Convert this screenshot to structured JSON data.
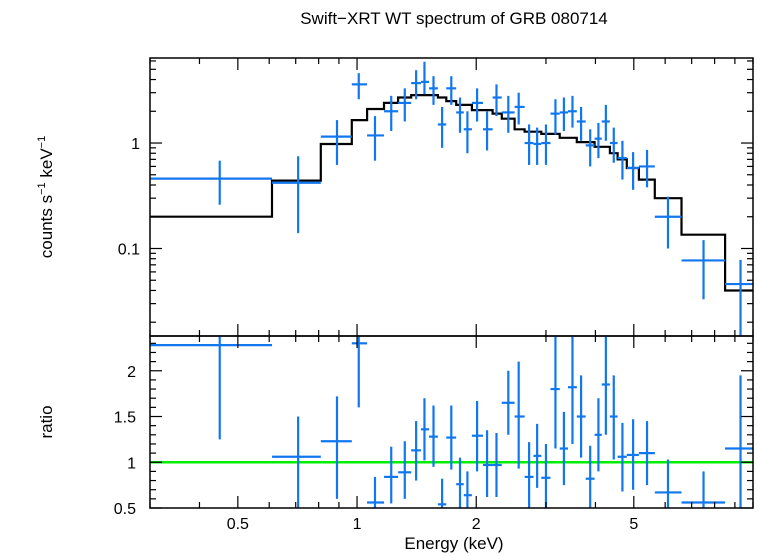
{
  "chart_data": {
    "type": "scatter",
    "title": "Swift−XRT WT spectrum of GRB 080714",
    "xlabel": "Energy (keV)",
    "x_scale": "log",
    "xlim": [
      0.3,
      10
    ],
    "x_ticks": [
      0.5,
      1,
      2,
      5
    ],
    "x_tick_labels": [
      "0.5",
      "1",
      "2",
      "5"
    ],
    "colors": {
      "data": "#1177ee",
      "model": "#000000",
      "unity": "#00ee00"
    },
    "top_panel": {
      "ylabel_main": "counts s",
      "ylabel_sup1": "−1",
      "ylabel_mid": " keV",
      "ylabel_sup2": "−1",
      "y_scale": "log",
      "ylim": [
        0.0148,
        6.4
      ],
      "y_ticks": [
        0.1,
        1
      ],
      "y_tick_labels": [
        "0.1",
        "1"
      ],
      "data": [
        {
          "x": 0.45,
          "xlo": 0.3,
          "xhi": 0.61,
          "y": 0.46,
          "ylo": 0.26,
          "yhi": 0.68
        },
        {
          "x": 0.71,
          "xlo": 0.61,
          "xhi": 0.81,
          "y": 0.42,
          "ylo": 0.14,
          "yhi": 0.75
        },
        {
          "x": 0.89,
          "xlo": 0.81,
          "xhi": 0.97,
          "y": 1.15,
          "ylo": 0.62,
          "yhi": 1.65
        },
        {
          "x": 1.01,
          "xlo": 0.97,
          "xhi": 1.06,
          "y": 3.6,
          "ylo": 2.6,
          "yhi": 4.6
        },
        {
          "x": 1.11,
          "xlo": 1.06,
          "xhi": 1.17,
          "y": 1.18,
          "ylo": 0.68,
          "yhi": 1.8
        },
        {
          "x": 1.22,
          "xlo": 1.17,
          "xhi": 1.27,
          "y": 2.0,
          "ylo": 1.3,
          "yhi": 2.8
        },
        {
          "x": 1.32,
          "xlo": 1.27,
          "xhi": 1.37,
          "y": 2.4,
          "ylo": 1.6,
          "yhi": 3.3
        },
        {
          "x": 1.41,
          "xlo": 1.37,
          "xhi": 1.45,
          "y": 3.7,
          "ylo": 2.6,
          "yhi": 4.9
        },
        {
          "x": 1.48,
          "xlo": 1.45,
          "xhi": 1.52,
          "y": 3.8,
          "ylo": 2.9,
          "yhi": 5.9
        },
        {
          "x": 1.56,
          "xlo": 1.52,
          "xhi": 1.6,
          "y": 3.3,
          "ylo": 2.3,
          "yhi": 4.3
        },
        {
          "x": 1.64,
          "xlo": 1.6,
          "xhi": 1.68,
          "y": 1.5,
          "ylo": 0.9,
          "yhi": 2.2
        },
        {
          "x": 1.73,
          "xlo": 1.68,
          "xhi": 1.78,
          "y": 3.3,
          "ylo": 2.3,
          "yhi": 4.3
        },
        {
          "x": 1.82,
          "xlo": 1.78,
          "xhi": 1.86,
          "y": 1.95,
          "ylo": 1.25,
          "yhi": 2.7
        },
        {
          "x": 1.9,
          "xlo": 1.86,
          "xhi": 1.95,
          "y": 1.35,
          "ylo": 0.8,
          "yhi": 2.0
        },
        {
          "x": 2.01,
          "xlo": 1.95,
          "xhi": 2.08,
          "y": 2.4,
          "ylo": 1.6,
          "yhi": 3.3
        },
        {
          "x": 2.13,
          "xlo": 2.08,
          "xhi": 2.2,
          "y": 1.35,
          "ylo": 0.85,
          "yhi": 2.0
        },
        {
          "x": 2.25,
          "xlo": 2.2,
          "xhi": 2.32,
          "y": 2.7,
          "ylo": 1.8,
          "yhi": 3.6
        },
        {
          "x": 2.41,
          "xlo": 2.32,
          "xhi": 2.5,
          "y": 1.95,
          "ylo": 1.25,
          "yhi": 2.8
        },
        {
          "x": 2.56,
          "xlo": 2.5,
          "xhi": 2.65,
          "y": 2.2,
          "ylo": 1.5,
          "yhi": 3.0
        },
        {
          "x": 2.72,
          "xlo": 2.65,
          "xhi": 2.79,
          "y": 1.0,
          "ylo": 0.62,
          "yhi": 1.5
        },
        {
          "x": 2.85,
          "xlo": 2.79,
          "xhi": 2.92,
          "y": 0.98,
          "ylo": 0.62,
          "yhi": 1.4
        },
        {
          "x": 3.0,
          "xlo": 2.92,
          "xhi": 3.08,
          "y": 1.0,
          "ylo": 0.62,
          "yhi": 1.5
        },
        {
          "x": 3.17,
          "xlo": 3.08,
          "xhi": 3.25,
          "y": 1.9,
          "ylo": 1.2,
          "yhi": 2.6
        },
        {
          "x": 3.33,
          "xlo": 3.25,
          "xhi": 3.41,
          "y": 1.95,
          "ylo": 1.3,
          "yhi": 2.7
        },
        {
          "x": 3.5,
          "xlo": 3.41,
          "xhi": 3.59,
          "y": 2.0,
          "ylo": 1.4,
          "yhi": 2.8
        },
        {
          "x": 3.68,
          "xlo": 3.59,
          "xhi": 3.78,
          "y": 1.6,
          "ylo": 1.05,
          "yhi": 2.2
        },
        {
          "x": 3.88,
          "xlo": 3.78,
          "xhi": 3.98,
          "y": 0.95,
          "ylo": 0.6,
          "yhi": 1.35
        },
        {
          "x": 4.07,
          "xlo": 3.98,
          "xhi": 4.15,
          "y": 1.1,
          "ylo": 0.72,
          "yhi": 1.55
        },
        {
          "x": 4.25,
          "xlo": 4.15,
          "xhi": 4.35,
          "y": 1.6,
          "ylo": 1.05,
          "yhi": 2.3
        },
        {
          "x": 4.45,
          "xlo": 4.35,
          "xhi": 4.55,
          "y": 1.0,
          "ylo": 0.65,
          "yhi": 1.4
        },
        {
          "x": 4.68,
          "xlo": 4.55,
          "xhi": 4.8,
          "y": 0.72,
          "ylo": 0.45,
          "yhi": 1.05
        },
        {
          "x": 4.98,
          "xlo": 4.8,
          "xhi": 5.15,
          "y": 0.58,
          "ylo": 0.36,
          "yhi": 0.82
        },
        {
          "x": 5.4,
          "xlo": 5.15,
          "xhi": 5.65,
          "y": 0.6,
          "ylo": 0.38,
          "yhi": 0.86
        },
        {
          "x": 6.1,
          "xlo": 5.65,
          "xhi": 6.6,
          "y": 0.2,
          "ylo": 0.1,
          "yhi": 0.31
        },
        {
          "x": 7.5,
          "xlo": 6.6,
          "xhi": 8.5,
          "y": 0.077,
          "ylo": 0.033,
          "yhi": 0.12
        },
        {
          "x": 9.3,
          "xlo": 8.5,
          "xhi": 10.0,
          "y": 0.046,
          "ylo": 0.0148,
          "yhi": 0.078
        }
      ],
      "model": [
        {
          "x0": 0.3,
          "x1": 0.61,
          "y": 0.2
        },
        {
          "x0": 0.61,
          "x1": 0.81,
          "y": 0.44
        },
        {
          "x0": 0.81,
          "x1": 0.97,
          "y": 0.98
        },
        {
          "x0": 0.97,
          "x1": 1.06,
          "y": 1.65
        },
        {
          "x0": 1.06,
          "x1": 1.17,
          "y": 2.1
        },
        {
          "x0": 1.17,
          "x1": 1.27,
          "y": 2.4
        },
        {
          "x0": 1.27,
          "x1": 1.37,
          "y": 2.7
        },
        {
          "x0": 1.37,
          "x1": 1.6,
          "y": 2.85
        },
        {
          "x0": 1.6,
          "x1": 1.68,
          "y": 2.7
        },
        {
          "x0": 1.68,
          "x1": 1.78,
          "y": 2.5
        },
        {
          "x0": 1.78,
          "x1": 1.95,
          "y": 2.3
        },
        {
          "x0": 1.95,
          "x1": 2.2,
          "y": 2.05
        },
        {
          "x0": 2.2,
          "x1": 2.32,
          "y": 1.9
        },
        {
          "x0": 2.32,
          "x1": 2.5,
          "y": 1.7
        },
        {
          "x0": 2.5,
          "x1": 2.65,
          "y": 1.35
        },
        {
          "x0": 2.65,
          "x1": 2.92,
          "y": 1.28
        },
        {
          "x0": 2.92,
          "x1": 3.25,
          "y": 1.22
        },
        {
          "x0": 3.25,
          "x1": 3.59,
          "y": 1.12
        },
        {
          "x0": 3.59,
          "x1": 3.98,
          "y": 1.02
        },
        {
          "x0": 3.98,
          "x1": 4.35,
          "y": 0.92
        },
        {
          "x0": 4.35,
          "x1": 4.55,
          "y": 0.8
        },
        {
          "x0": 4.55,
          "x1": 4.8,
          "y": 0.7
        },
        {
          "x0": 4.8,
          "x1": 5.15,
          "y": 0.58
        },
        {
          "x0": 5.15,
          "x1": 5.65,
          "y": 0.45
        },
        {
          "x0": 5.65,
          "x1": 6.6,
          "y": 0.3
        },
        {
          "x0": 6.6,
          "x1": 8.5,
          "y": 0.135
        },
        {
          "x0": 8.5,
          "x1": 10.0,
          "y": 0.04
        }
      ]
    },
    "bottom_panel": {
      "ylabel": "ratio",
      "y_scale": "linear",
      "ylim": [
        0.5,
        2.38
      ],
      "y_ticks": [
        0.5,
        1,
        1.5,
        2
      ],
      "y_tick_labels": [
        "0.5",
        "1",
        "1.5",
        "2"
      ],
      "unity_line": 1,
      "data": [
        {
          "x": 0.45,
          "xlo": 0.3,
          "xhi": 0.61,
          "y": 2.28,
          "ylo": 1.25,
          "yhi": 2.38
        },
        {
          "x": 0.71,
          "xlo": 0.61,
          "xhi": 0.81,
          "y": 1.06,
          "ylo": 0.5,
          "yhi": 1.5
        },
        {
          "x": 0.89,
          "xlo": 0.81,
          "xhi": 0.97,
          "y": 1.23,
          "ylo": 0.6,
          "yhi": 1.72
        },
        {
          "x": 1.01,
          "xlo": 0.97,
          "xhi": 1.06,
          "y": 2.3,
          "ylo": 1.6,
          "yhi": 2.38
        },
        {
          "x": 1.11,
          "xlo": 1.06,
          "xhi": 1.17,
          "y": 0.56,
          "ylo": 0.5,
          "yhi": 0.84
        },
        {
          "x": 1.22,
          "xlo": 1.17,
          "xhi": 1.27,
          "y": 0.84,
          "ylo": 0.55,
          "yhi": 1.17
        },
        {
          "x": 1.32,
          "xlo": 1.27,
          "xhi": 1.37,
          "y": 0.89,
          "ylo": 0.6,
          "yhi": 1.23
        },
        {
          "x": 1.41,
          "xlo": 1.37,
          "xhi": 1.45,
          "y": 1.13,
          "ylo": 0.8,
          "yhi": 1.45
        },
        {
          "x": 1.48,
          "xlo": 1.45,
          "xhi": 1.52,
          "y": 1.36,
          "ylo": 1.02,
          "yhi": 1.7
        },
        {
          "x": 1.56,
          "xlo": 1.52,
          "xhi": 1.6,
          "y": 1.28,
          "ylo": 0.95,
          "yhi": 1.62
        },
        {
          "x": 1.64,
          "xlo": 1.6,
          "xhi": 1.68,
          "y": 0.54,
          "ylo": 0.5,
          "yhi": 0.82
        },
        {
          "x": 1.73,
          "xlo": 1.68,
          "xhi": 1.78,
          "y": 1.27,
          "ylo": 0.92,
          "yhi": 1.62
        },
        {
          "x": 1.82,
          "xlo": 1.78,
          "xhi": 1.86,
          "y": 0.76,
          "ylo": 0.5,
          "yhi": 1.05
        },
        {
          "x": 1.9,
          "xlo": 1.86,
          "xhi": 1.95,
          "y": 0.64,
          "ylo": 0.5,
          "yhi": 0.9
        },
        {
          "x": 2.01,
          "xlo": 1.95,
          "xhi": 2.08,
          "y": 1.29,
          "ylo": 0.9,
          "yhi": 1.67
        },
        {
          "x": 2.13,
          "xlo": 2.08,
          "xhi": 2.2,
          "y": 0.97,
          "ylo": 0.62,
          "yhi": 1.35
        },
        {
          "x": 2.25,
          "xlo": 2.2,
          "xhi": 2.32,
          "y": 0.97,
          "ylo": 0.62,
          "yhi": 1.32
        },
        {
          "x": 2.41,
          "xlo": 2.32,
          "xhi": 2.5,
          "y": 1.65,
          "ylo": 1.3,
          "yhi": 2.0
        },
        {
          "x": 2.56,
          "xlo": 2.5,
          "xhi": 2.65,
          "y": 1.5,
          "ylo": 0.93,
          "yhi": 2.1
        },
        {
          "x": 2.72,
          "xlo": 2.65,
          "xhi": 2.79,
          "y": 0.84,
          "ylo": 0.5,
          "yhi": 1.22
        },
        {
          "x": 2.85,
          "xlo": 2.79,
          "xhi": 2.92,
          "y": 1.07,
          "ylo": 0.72,
          "yhi": 1.42
        },
        {
          "x": 3.0,
          "xlo": 2.92,
          "xhi": 3.08,
          "y": 0.83,
          "ylo": 0.5,
          "yhi": 1.2
        },
        {
          "x": 3.17,
          "xlo": 3.08,
          "xhi": 3.25,
          "y": 1.8,
          "ylo": 1.15,
          "yhi": 2.38
        },
        {
          "x": 3.33,
          "xlo": 3.25,
          "xhi": 3.41,
          "y": 1.15,
          "ylo": 0.75,
          "yhi": 1.55
        },
        {
          "x": 3.5,
          "xlo": 3.41,
          "xhi": 3.59,
          "y": 1.82,
          "ylo": 1.2,
          "yhi": 2.38
        },
        {
          "x": 3.68,
          "xlo": 3.59,
          "xhi": 3.78,
          "y": 1.5,
          "ylo": 1.05,
          "yhi": 1.95
        },
        {
          "x": 3.88,
          "xlo": 3.78,
          "xhi": 3.98,
          "y": 0.82,
          "ylo": 0.5,
          "yhi": 1.18
        },
        {
          "x": 4.07,
          "xlo": 3.98,
          "xhi": 4.15,
          "y": 1.3,
          "ylo": 0.9,
          "yhi": 1.7
        },
        {
          "x": 4.25,
          "xlo": 4.15,
          "xhi": 4.35,
          "y": 1.85,
          "ylo": 1.3,
          "yhi": 2.38
        },
        {
          "x": 4.45,
          "xlo": 4.35,
          "xhi": 4.55,
          "y": 1.5,
          "ylo": 1.03,
          "yhi": 1.95
        },
        {
          "x": 4.68,
          "xlo": 4.55,
          "xhi": 4.8,
          "y": 1.06,
          "ylo": 0.68,
          "yhi": 1.43
        },
        {
          "x": 4.98,
          "xlo": 4.8,
          "xhi": 5.15,
          "y": 1.08,
          "ylo": 0.7,
          "yhi": 1.47
        },
        {
          "x": 5.4,
          "xlo": 5.15,
          "xhi": 5.65,
          "y": 1.1,
          "ylo": 0.75,
          "yhi": 1.45
        },
        {
          "x": 6.1,
          "xlo": 5.65,
          "xhi": 6.6,
          "y": 0.67,
          "ylo": 0.5,
          "yhi": 1.03
        },
        {
          "x": 7.5,
          "xlo": 6.6,
          "xhi": 8.5,
          "y": 0.56,
          "ylo": 0.5,
          "yhi": 0.9
        },
        {
          "x": 9.3,
          "xlo": 8.5,
          "xhi": 10.0,
          "y": 1.15,
          "ylo": 0.5,
          "yhi": 1.95
        }
      ]
    }
  }
}
